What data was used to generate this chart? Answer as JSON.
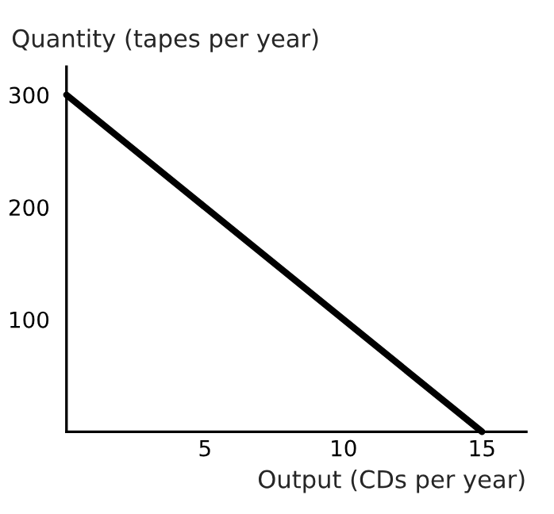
{
  "chart_data": {
    "type": "line",
    "xlabel": "Output (CDs per year)",
    "ylabel": "Quantity (tapes per year)",
    "x": [
      0,
      15
    ],
    "series": [
      {
        "color": "#000000",
        "values": [
          300,
          0
        ]
      }
    ],
    "xlim": [
      0,
      16.6
    ],
    "ylim": [
      0,
      325
    ],
    "xticks": [
      5,
      10,
      15
    ],
    "yticks": [
      100,
      200,
      300
    ],
    "grid": false,
    "legend": false,
    "line_style": "solid",
    "marker": "none"
  }
}
